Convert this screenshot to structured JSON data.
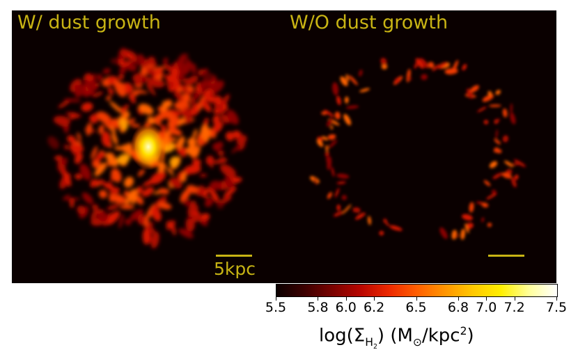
{
  "panels": {
    "left": {
      "title": "W/ dust growth",
      "scale_label": "5kpc"
    },
    "right": {
      "title": "W/O dust growth"
    }
  },
  "colorbar": {
    "min": 5.5,
    "max": 7.5,
    "ticks": [
      "5.5",
      "5.8",
      "6.0",
      "6.2",
      "6.5",
      "6.8",
      "7.0",
      "7.2",
      "7.5"
    ],
    "label_prefix": "log(Σ",
    "label_sub1": "H",
    "label_sub2": "2",
    "label_mid": ") (M",
    "label_sun": "⊙",
    "label_unit": "/kpc",
    "label_sup": "2",
    "label_suffix": ")",
    "colormap": "hot",
    "colors": [
      "#0b0000",
      "#7a0200",
      "#ec2800",
      "#ff9400",
      "#ffef00",
      "#ffffff"
    ]
  }
}
